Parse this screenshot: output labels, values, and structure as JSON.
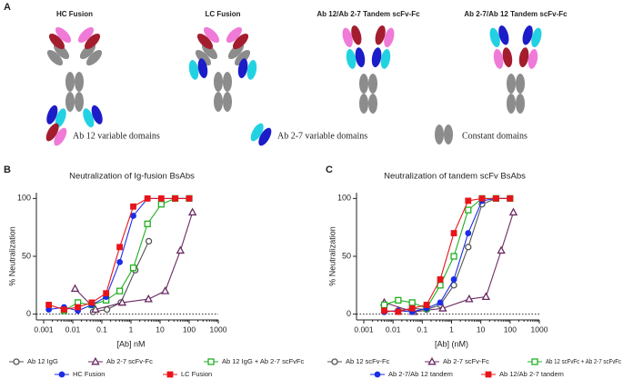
{
  "panel_a": {
    "label": "A",
    "titles": [
      "HC Fusion",
      "LC Fusion",
      "Ab 12/Ab 2-7 Tandem scFv-Fc",
      "Ab 2-7/Ab 12 Tandem scFv-Fc"
    ],
    "legend": [
      "Ab 12 variable domains",
      "Ab 2-7 variable domains",
      "Constant domains"
    ]
  },
  "chart_data": [
    {
      "type": "line",
      "panel": "B",
      "title": "Neutralization of Ig-fusion BsAbs",
      "xlabel": "[Ab] nM",
      "ylabel": "% Neutralization",
      "xscale": "log",
      "xlim": [
        0.001,
        1000
      ],
      "xticks": [
        0.001,
        0.01,
        0.1,
        1,
        10,
        100,
        1000
      ],
      "ylim": [
        -5,
        105
      ],
      "yticks": [
        0,
        50,
        100
      ],
      "reference_line": 0,
      "series": [
        {
          "name": "Ab 12 IgG",
          "color": "#555555",
          "marker": "circle-open",
          "x": [
            0.05,
            0.15,
            0.45,
            1.4,
            4.1
          ],
          "values": [
            2,
            4,
            10,
            38,
            63
          ]
        },
        {
          "name": "Ab 2-7 scFv-Fc",
          "color": "#6a2a63",
          "marker": "triangle-open",
          "x": [
            0.012,
            0.06,
            0.5,
            4,
            15,
            50,
            130
          ],
          "values": [
            22,
            4,
            10,
            13,
            20,
            55,
            88
          ]
        },
        {
          "name": "Ab 12 IgG + Ab 2-7 scFvFc",
          "color": "#20b020",
          "marker": "square-open",
          "x": [
            0.005,
            0.015,
            0.045,
            0.14,
            0.41,
            1.2,
            3.7,
            11,
            33,
            100
          ],
          "values": [
            3,
            10,
            8,
            12,
            20,
            40,
            78,
            95,
            100,
            100
          ]
        },
        {
          "name": "HC Fusion",
          "color": "#1a2ee8",
          "marker": "circle",
          "x": [
            0.0015,
            0.005,
            0.015,
            0.045,
            0.14,
            0.41,
            1.2,
            3.7,
            11,
            33,
            100
          ],
          "values": [
            4,
            6,
            3,
            8,
            15,
            45,
            85,
            100,
            100,
            100,
            100
          ]
        },
        {
          "name": "LC Fusion",
          "color": "#e8141a",
          "marker": "square",
          "x": [
            0.0015,
            0.005,
            0.015,
            0.045,
            0.14,
            0.41,
            1.2,
            3.7,
            11,
            33,
            100
          ],
          "values": [
            8,
            4,
            6,
            10,
            18,
            58,
            93,
            100,
            100,
            100,
            100
          ]
        }
      ]
    },
    {
      "type": "line",
      "panel": "C",
      "title": "Neutralization of tandem scFv BsAbs",
      "xlabel": "[Ab] (nM)",
      "ylabel": "% Neutralization",
      "xscale": "log",
      "xlim": [
        0.001,
        1000
      ],
      "xticks": [
        0.001,
        0.01,
        0.1,
        1,
        10,
        100,
        1000
      ],
      "ylim": [
        -5,
        105
      ],
      "yticks": [
        0,
        50,
        100
      ],
      "reference_line": 0,
      "series": [
        {
          "name": "Ab 12 scFv-Fc",
          "color": "#555555",
          "marker": "circle-open",
          "x": [
            0.005,
            0.015,
            0.045,
            0.14,
            0.41,
            1.2,
            3.7,
            11,
            33,
            100
          ],
          "values": [
            2,
            3,
            5,
            4,
            8,
            25,
            58,
            95,
            100,
            100
          ]
        },
        {
          "name": "Ab 2-7 scFv-Fc",
          "color": "#6a2a63",
          "marker": "triangle-open",
          "x": [
            0.005,
            0.05,
            0.5,
            4,
            15,
            50,
            130
          ],
          "values": [
            10,
            2,
            5,
            13,
            15,
            55,
            88
          ]
        },
        {
          "name": "Ab 12 scFvFc + Ab 2-7 scFvFc",
          "color": "#20b020",
          "marker": "square-open",
          "x": [
            0.005,
            0.015,
            0.045,
            0.14,
            0.41,
            1.2,
            3.7,
            11,
            33,
            100
          ],
          "values": [
            8,
            12,
            10,
            5,
            25,
            50,
            90,
            100,
            100,
            100
          ]
        },
        {
          "name": "Ab 2-7/Ab 12 tandem",
          "color": "#1a2ee8",
          "marker": "circle",
          "x": [
            0.005,
            0.015,
            0.045,
            0.14,
            0.41,
            1.2,
            3.7,
            11,
            33,
            100
          ],
          "values": [
            2,
            3,
            2,
            5,
            10,
            30,
            70,
            98,
            100,
            100
          ]
        },
        {
          "name": "Ab 12/Ab 2-7 tandem",
          "color": "#e8141a",
          "marker": "square",
          "x": [
            0.005,
            0.015,
            0.045,
            0.14,
            0.41,
            1.2,
            3.7,
            11,
            33,
            100
          ],
          "values": [
            3,
            2,
            5,
            8,
            30,
            70,
            98,
            100,
            100,
            100
          ]
        }
      ]
    }
  ]
}
